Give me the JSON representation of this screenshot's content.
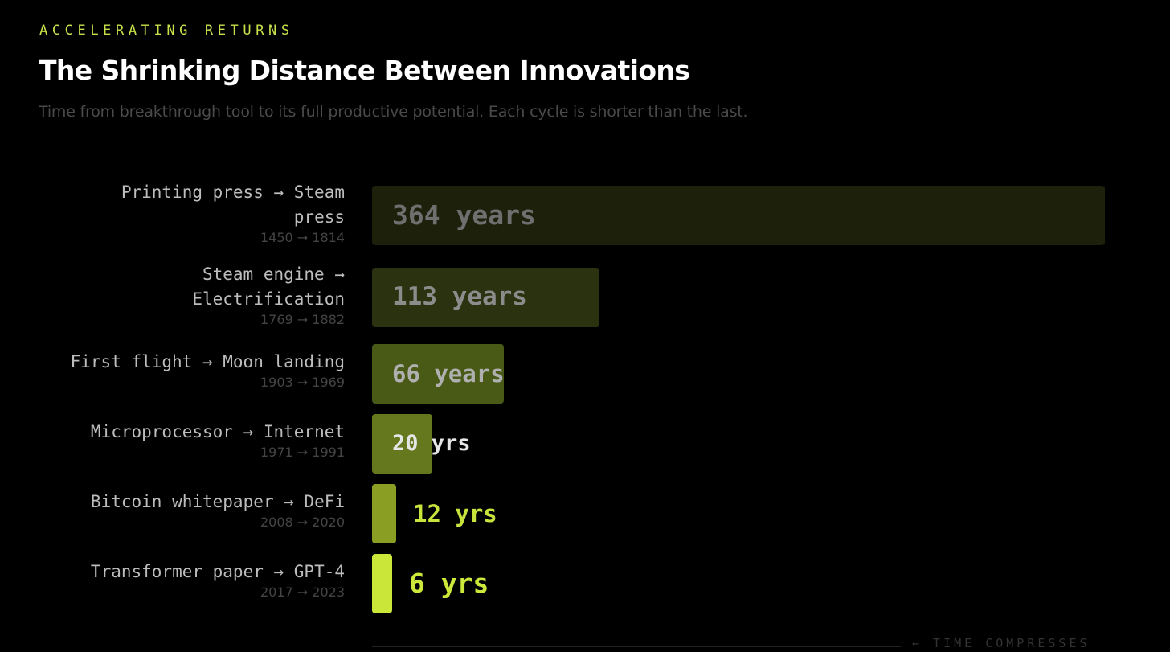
{
  "header": {
    "eyebrow": "ACCELERATING RETURNS",
    "title": "The Shrinking Distance Between Innovations",
    "subtitle": "Time from breakthrough tool to its full productive potential. Each cycle is shorter than the last."
  },
  "chart_data": {
    "type": "bar",
    "orientation": "horizontal",
    "title": "The Shrinking Distance Between Innovations",
    "categories": [
      "Printing press → Steam press",
      "Steam engine → Electrification",
      "First flight → Moon landing",
      "Microprocessor → Internet",
      "Bitcoin whitepaper → DeFi",
      "Transformer paper → GPT-4"
    ],
    "year_ranges": [
      "1450 → 1814",
      "1769 → 1882",
      "1903 → 1969",
      "1971 → 1991",
      "2008 → 2020",
      "2017 → 2023"
    ],
    "values": [
      364,
      113,
      66,
      20,
      12,
      6
    ],
    "value_labels": [
      "364 years",
      "113 years",
      "66 years",
      "20 yrs",
      "12 yrs",
      "6 yrs"
    ],
    "xlim": [
      0,
      364
    ],
    "annotation": "← TIME COMPRESSES",
    "colors": {
      "bars": [
        "#1d210c",
        "#2a3210",
        "#485a16",
        "#66781e",
        "#8a9e24",
        "#c9e639"
      ],
      "labels": [
        "#6f6f6f",
        "#8c8c8c",
        "#b0b0b0",
        "#e6e6e6",
        "#c8e43c",
        "#cce83a"
      ]
    }
  }
}
